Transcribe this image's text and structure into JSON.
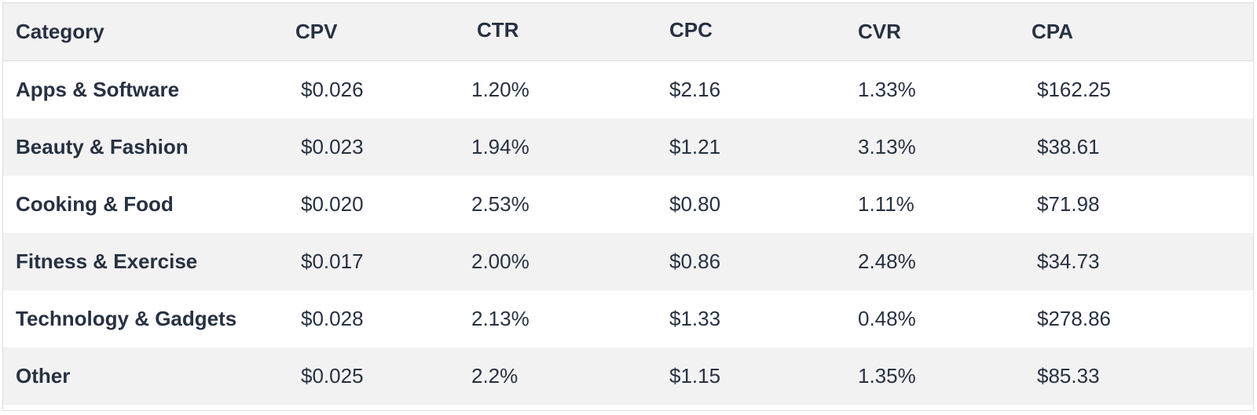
{
  "table": {
    "headers": [
      "Category",
      "CPV",
      "CTR",
      "CPC",
      "CVR",
      "CPA"
    ],
    "rows": [
      [
        "Apps & Software",
        "$0.026",
        "1.20%",
        "$2.16",
        "1.33%",
        "$162.25"
      ],
      [
        "Beauty & Fashion",
        "$0.023",
        "1.94%",
        "$1.21",
        "3.13%",
        "$38.61"
      ],
      [
        "Cooking & Food",
        "$0.020",
        "2.53%",
        "$0.80",
        "1.11%",
        "$71.98"
      ],
      [
        "Fitness & Exercise",
        "$0.017",
        "2.00%",
        "$0.86",
        "2.48%",
        "$34.73"
      ],
      [
        "Technology & Gadgets",
        "$0.028",
        "2.13%",
        "$1.33",
        "0.48%",
        "$278.86"
      ],
      [
        "Other",
        "$0.025",
        "2.2%",
        "$1.15",
        "1.35%",
        "$85.33"
      ]
    ]
  },
  "colors": {
    "text": "#273142",
    "header_bg": "#f2f2f2",
    "stripe_bg": "#f2f2f2",
    "row_bg": "#ffffff"
  }
}
